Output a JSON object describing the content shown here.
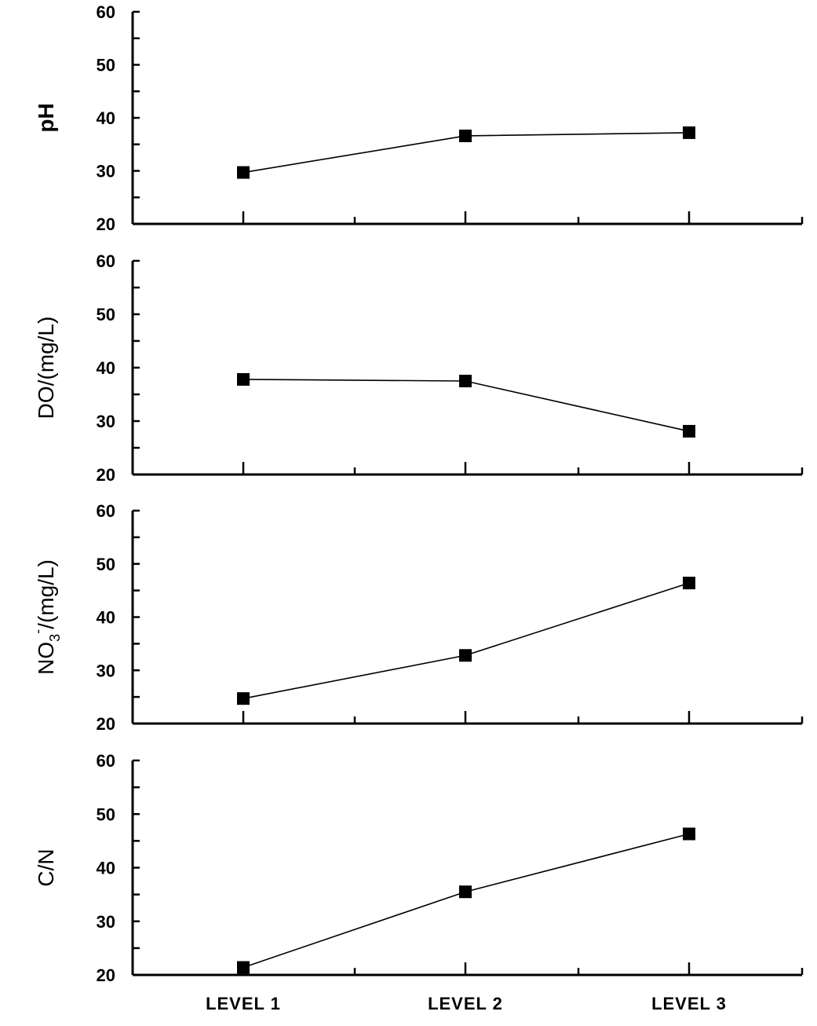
{
  "chart_data": [
    {
      "type": "line",
      "ylabel": "pH",
      "categories": [
        "LEVEL 1",
        "LEVEL 2",
        "LEVEL 3"
      ],
      "yticks": [
        "20",
        "30",
        "40",
        "50",
        "60"
      ],
      "ylim": [
        20,
        60
      ],
      "series": [
        {
          "values": [
            29.7,
            36.6,
            37.2
          ]
        }
      ],
      "grid": false
    },
    {
      "type": "line",
      "ylabel": "DO/(mg/L)",
      "categories": [
        "LEVEL 1",
        "LEVEL 2",
        "LEVEL 3"
      ],
      "yticks": [
        "20",
        "30",
        "40",
        "50",
        "60"
      ],
      "ylim": [
        20,
        60
      ],
      "series": [
        {
          "values": [
            37.8,
            37.5,
            28.1
          ]
        }
      ],
      "grid": false
    },
    {
      "type": "line",
      "ylabel": "NO3-/(mg/L)",
      "ylabel_parts": {
        "main": "NO",
        "sub": "3",
        "sup": "-",
        "rest": "/(mg/L)"
      },
      "categories": [
        "LEVEL 1",
        "LEVEL 2",
        "LEVEL 3"
      ],
      "yticks": [
        "20",
        "30",
        "40",
        "50",
        "60"
      ],
      "ylim": [
        20,
        60
      ],
      "series": [
        {
          "values": [
            24.7,
            32.8,
            46.4
          ]
        }
      ],
      "grid": false
    },
    {
      "type": "line",
      "ylabel": "C/N",
      "categories": [
        "LEVEL 1",
        "LEVEL 2",
        "LEVEL 3"
      ],
      "yticks": [
        "20",
        "30",
        "40",
        "50",
        "60"
      ],
      "ylim": [
        20,
        60
      ],
      "series": [
        {
          "values": [
            21.4,
            35.5,
            46.3
          ]
        }
      ],
      "grid": false
    }
  ],
  "colors": {
    "marker": "#000000",
    "line": "#000000",
    "axis": "#000000",
    "background": "#ffffff"
  }
}
